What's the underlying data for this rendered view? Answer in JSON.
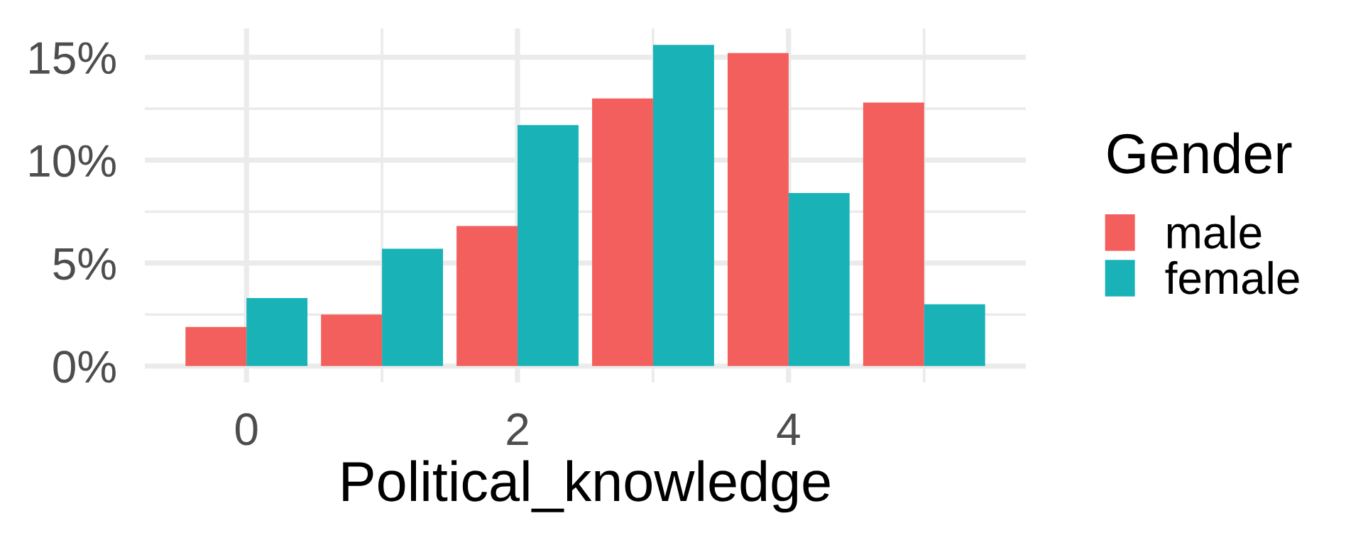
{
  "chart_data": {
    "type": "bar",
    "xlabel": "Political_knowledge",
    "legend_title": "Gender",
    "x": [
      0,
      1,
      2,
      3,
      4,
      5
    ],
    "series": [
      {
        "name": "male",
        "color": "#f35f5c",
        "values": [
          1.9,
          2.5,
          6.8,
          13.0,
          15.2,
          12.8
        ]
      },
      {
        "name": "female",
        "color": "#19b3b7",
        "values": [
          3.3,
          5.7,
          11.7,
          15.6,
          8.4,
          3.0
        ]
      }
    ],
    "xlim": [
      -0.75,
      5.75
    ],
    "ylim": [
      -0.8,
      16.4
    ],
    "xticks": [
      0,
      2,
      4
    ],
    "yticks": [
      {
        "value": 0,
        "label": "0%"
      },
      {
        "value": 5,
        "label": "5%"
      },
      {
        "value": 10,
        "label": "10%"
      },
      {
        "value": 15,
        "label": "15%"
      }
    ],
    "grid": true,
    "legend": "right"
  }
}
